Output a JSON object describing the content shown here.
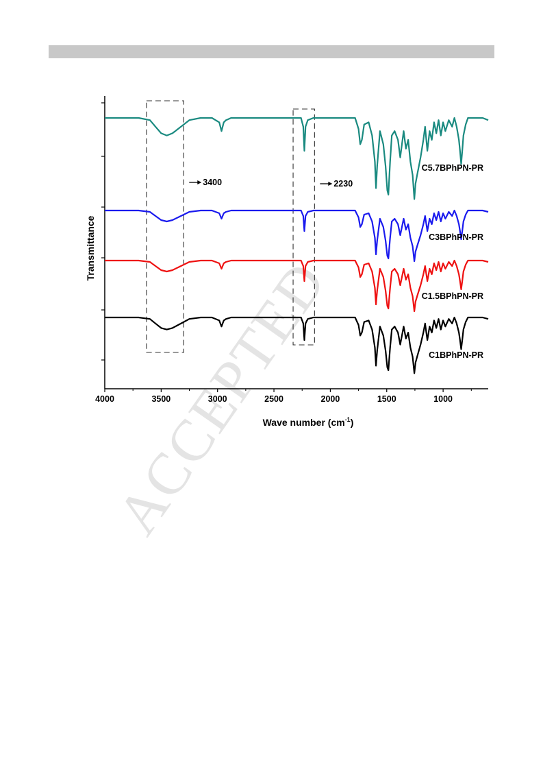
{
  "page": {
    "watermark": "ACCEPTED"
  },
  "chart_data": {
    "type": "line",
    "title": "",
    "xlabel": "Wave number (cm",
    "xlabel_sup": "-1",
    "xlabel_close": ")",
    "ylabel": "Transmittance",
    "xlim": [
      4000,
      600
    ],
    "x_reversed": true,
    "x_ticks": [
      4000,
      3500,
      3000,
      2500,
      2000,
      1500,
      1000
    ],
    "y_ticks_labeled": false,
    "grid": false,
    "legend": "labels at right end of each trace",
    "annotations": [
      {
        "label": "3400",
        "box_range": [
          3630,
          3300
        ]
      },
      {
        "label": "2230",
        "box_range": [
          2330,
          2140
        ]
      }
    ],
    "series": [
      {
        "name": "C5.7BPhPN-PR",
        "color": "#1a8a80",
        "x": [
          4000,
          3700,
          3600,
          3550,
          3500,
          3450,
          3400,
          3350,
          3300,
          3250,
          3150,
          3050,
          2985,
          2965,
          2945,
          2925,
          2880,
          2600,
          2400,
          2260,
          2240,
          2230,
          2220,
          2200,
          2150,
          2000,
          1850,
          1780,
          1750,
          1735,
          1720,
          1700,
          1660,
          1630,
          1605,
          1595,
          1585,
          1560,
          1530,
          1510,
          1495,
          1485,
          1470,
          1455,
          1430,
          1400,
          1380,
          1350,
          1330,
          1310,
          1290,
          1270,
          1255,
          1245,
          1230,
          1200,
          1175,
          1160,
          1140,
          1120,
          1100,
          1080,
          1060,
          1040,
          1020,
          1000,
          980,
          950,
          920,
          900,
          880,
          860,
          850,
          840,
          830,
          820,
          800,
          780,
          750,
          700,
          650,
          600
        ],
        "values": [
          100,
          100,
          99,
          96,
          93,
          92,
          93,
          95,
          97,
          99,
          100,
          100,
          98,
          94,
          98,
          99,
          100,
          100,
          100,
          100,
          96,
          85,
          96,
          99,
          100,
          100,
          100,
          100,
          95,
          88,
          90,
          97,
          98,
          92,
          80,
          68,
          78,
          94,
          88,
          78,
          67,
          65,
          80,
          92,
          94,
          90,
          82,
          94,
          86,
          90,
          80,
          74,
          63,
          70,
          74,
          82,
          90,
          96,
          85,
          94,
          90,
          98,
          93,
          99,
          92,
          98,
          94,
          99,
          96,
          100,
          96,
          90,
          85,
          79,
          85,
          92,
          97,
          100,
          100,
          100,
          100,
          99
        ]
      },
      {
        "name": "C3BPhPN-PR",
        "color": "#1a1aee",
        "x": [
          4000,
          3700,
          3600,
          3550,
          3500,
          3450,
          3400,
          3350,
          3300,
          3250,
          3150,
          3050,
          2985,
          2965,
          2945,
          2925,
          2880,
          2600,
          2400,
          2260,
          2240,
          2230,
          2220,
          2200,
          2150,
          2000,
          1850,
          1780,
          1750,
          1735,
          1720,
          1700,
          1660,
          1630,
          1605,
          1595,
          1585,
          1560,
          1530,
          1510,
          1495,
          1485,
          1470,
          1455,
          1430,
          1400,
          1380,
          1350,
          1330,
          1310,
          1290,
          1270,
          1255,
          1245,
          1230,
          1200,
          1175,
          1160,
          1140,
          1120,
          1100,
          1080,
          1060,
          1040,
          1020,
          1000,
          980,
          950,
          920,
          900,
          880,
          860,
          850,
          840,
          830,
          820,
          800,
          780,
          750,
          700,
          650,
          600
        ],
        "values": [
          100,
          100,
          99,
          96,
          93,
          92,
          93,
          95,
          97,
          99,
          100,
          100,
          98,
          94,
          98,
          99,
          100,
          100,
          100,
          100,
          96,
          85,
          96,
          99,
          100,
          100,
          100,
          100,
          95,
          88,
          90,
          97,
          98,
          92,
          80,
          68,
          78,
          94,
          88,
          78,
          67,
          65,
          80,
          92,
          94,
          90,
          82,
          94,
          86,
          90,
          80,
          74,
          63,
          70,
          74,
          82,
          90,
          96,
          85,
          94,
          90,
          98,
          93,
          99,
          92,
          98,
          94,
          99,
          96,
          100,
          96,
          90,
          85,
          79,
          85,
          92,
          97,
          100,
          100,
          100,
          100,
          99
        ]
      },
      {
        "name": "C1.5BPhPN-PR",
        "color": "#ee1111",
        "x": [
          4000,
          3700,
          3600,
          3550,
          3500,
          3450,
          3400,
          3350,
          3300,
          3250,
          3150,
          3050,
          2985,
          2965,
          2945,
          2925,
          2880,
          2600,
          2400,
          2260,
          2240,
          2230,
          2220,
          2200,
          2150,
          2000,
          1850,
          1780,
          1750,
          1735,
          1720,
          1700,
          1660,
          1630,
          1605,
          1595,
          1585,
          1560,
          1530,
          1510,
          1495,
          1485,
          1470,
          1455,
          1430,
          1400,
          1380,
          1350,
          1330,
          1310,
          1290,
          1270,
          1255,
          1245,
          1230,
          1200,
          1175,
          1160,
          1140,
          1120,
          1100,
          1080,
          1060,
          1040,
          1020,
          1000,
          980,
          950,
          920,
          900,
          880,
          860,
          850,
          840,
          830,
          820,
          800,
          780,
          750,
          700,
          650,
          600
        ],
        "values": [
          100,
          100,
          99,
          96,
          93,
          92,
          93,
          95,
          97,
          99,
          100,
          100,
          98,
          94,
          98,
          99,
          100,
          100,
          100,
          100,
          96,
          85,
          96,
          99,
          100,
          100,
          100,
          100,
          95,
          88,
          90,
          97,
          98,
          92,
          80,
          68,
          78,
          94,
          88,
          78,
          67,
          65,
          80,
          92,
          94,
          90,
          82,
          94,
          86,
          90,
          80,
          74,
          63,
          70,
          74,
          82,
          90,
          96,
          85,
          94,
          90,
          98,
          93,
          99,
          92,
          98,
          94,
          99,
          96,
          100,
          96,
          90,
          85,
          79,
          85,
          92,
          97,
          100,
          100,
          100,
          100,
          99
        ]
      },
      {
        "name": "C1BPhPN-PR",
        "color": "#000000",
        "x": [
          4000,
          3700,
          3600,
          3550,
          3500,
          3450,
          3400,
          3350,
          3300,
          3250,
          3150,
          3050,
          2985,
          2965,
          2945,
          2925,
          2880,
          2600,
          2400,
          2260,
          2240,
          2230,
          2220,
          2200,
          2150,
          2000,
          1850,
          1780,
          1750,
          1735,
          1720,
          1700,
          1660,
          1630,
          1605,
          1595,
          1585,
          1560,
          1530,
          1510,
          1495,
          1485,
          1470,
          1455,
          1430,
          1400,
          1380,
          1350,
          1330,
          1310,
          1290,
          1270,
          1255,
          1245,
          1230,
          1200,
          1175,
          1160,
          1140,
          1120,
          1100,
          1080,
          1060,
          1040,
          1020,
          1000,
          980,
          950,
          920,
          900,
          880,
          860,
          850,
          840,
          830,
          820,
          800,
          780,
          750,
          700,
          650,
          600
        ],
        "values": [
          100,
          100,
          99,
          96,
          93,
          92,
          93,
          95,
          97,
          99,
          100,
          100,
          98,
          94,
          98,
          99,
          100,
          100,
          100,
          100,
          96,
          85,
          96,
          99,
          100,
          100,
          100,
          100,
          95,
          88,
          90,
          97,
          98,
          92,
          80,
          68,
          78,
          94,
          88,
          78,
          67,
          65,
          80,
          92,
          94,
          90,
          82,
          94,
          86,
          90,
          80,
          74,
          63,
          70,
          74,
          82,
          90,
          96,
          85,
          94,
          90,
          98,
          93,
          99,
          92,
          98,
          94,
          99,
          96,
          100,
          96,
          90,
          85,
          79,
          85,
          92,
          97,
          100,
          100,
          100,
          100,
          99
        ]
      }
    ]
  }
}
